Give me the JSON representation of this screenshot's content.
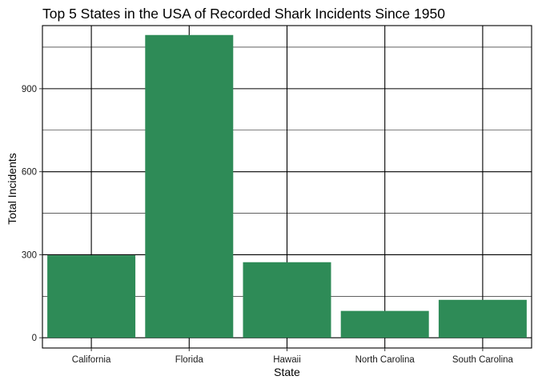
{
  "chart_data": {
    "type": "bar",
    "title": "Top 5 States in the USA of Recorded Shark Incidents Since 1950",
    "xlabel": "State",
    "ylabel": "Total Incidents",
    "categories": [
      "California",
      "Florida",
      "Hawaii",
      "North Carolina",
      "South Carolina"
    ],
    "values": [
      298,
      1094,
      273,
      97,
      137
    ],
    "ylim": [
      -37,
      1128
    ],
    "yticks": [
      0,
      300,
      600,
      900
    ],
    "ytick_labels": [
      "0",
      "300",
      "600",
      "900"
    ],
    "grid": true,
    "bar_color": "#2e8b57",
    "grid_color": "#000000",
    "legend": "none"
  }
}
